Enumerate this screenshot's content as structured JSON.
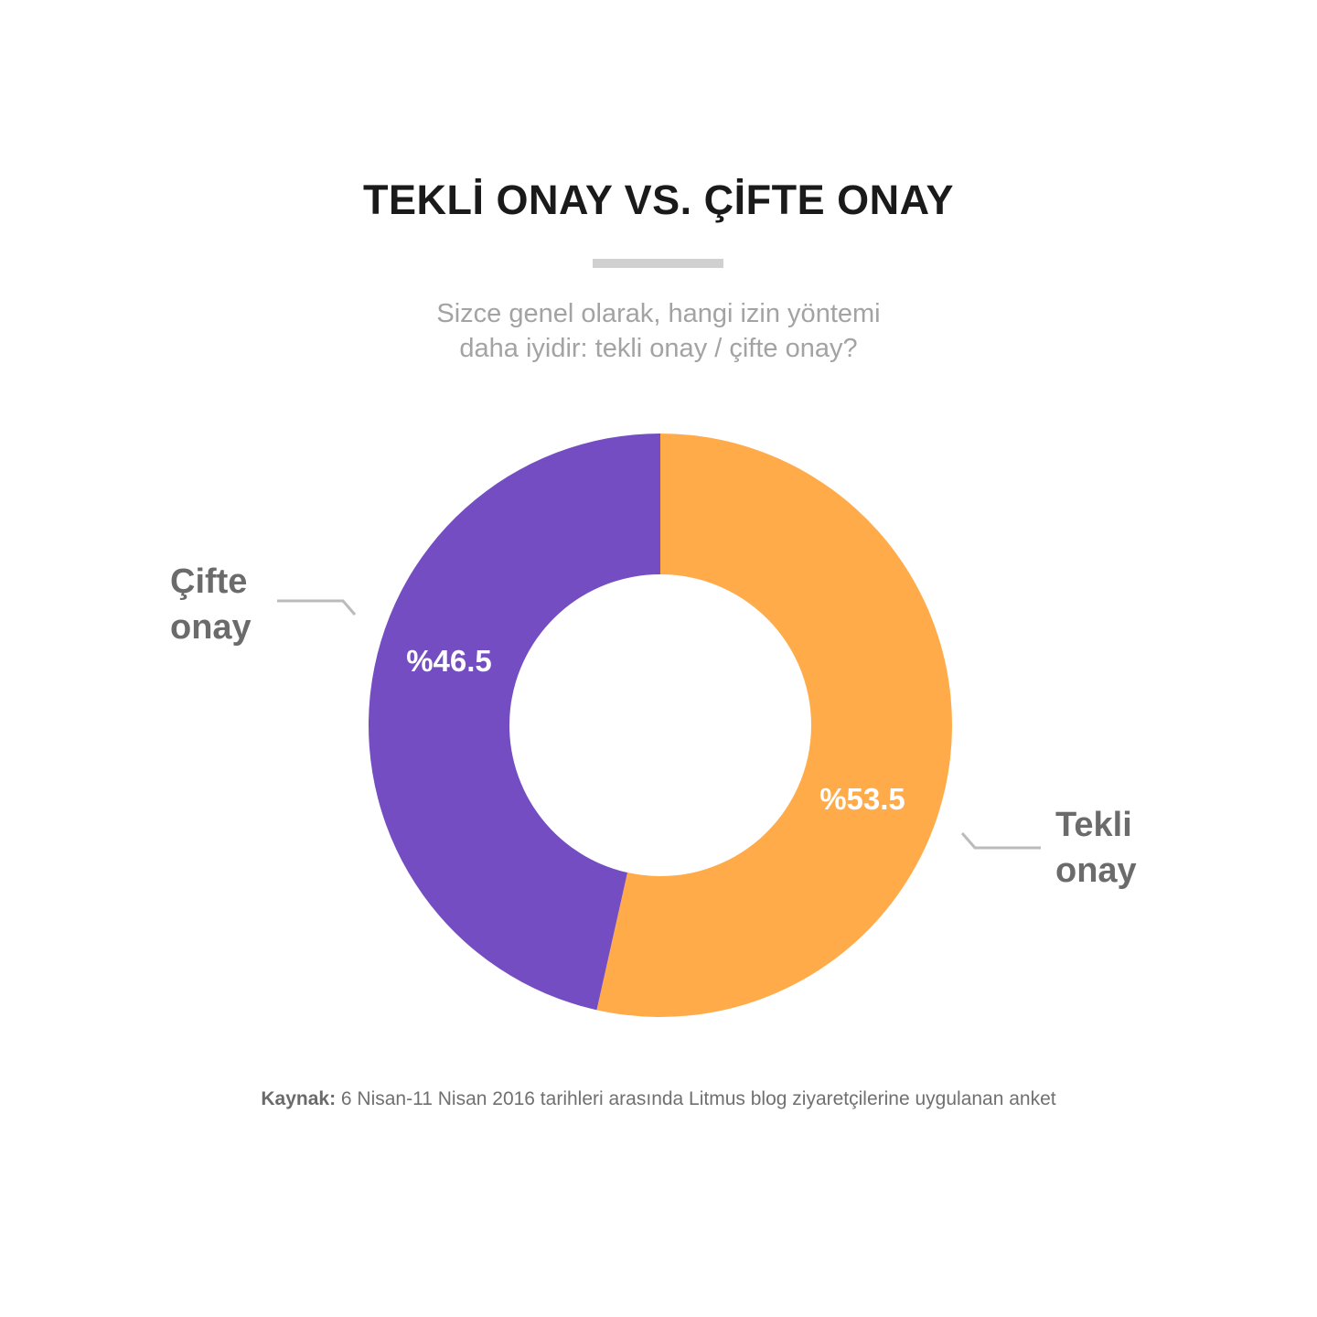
{
  "chart_data": {
    "type": "pie",
    "variant": "donut",
    "title": "TEKLİ ONAY VS. ÇİFTE ONAY",
    "subtitle": [
      "Sizce genel olarak, hangi izin yöntemi",
      "daha iyidir: tekli onay / çifte onay?"
    ],
    "slices": [
      {
        "name_lines": [
          "Tekli",
          "onay"
        ],
        "value": 53.5,
        "value_label": "%53.5",
        "color": "#FFAB4A"
      },
      {
        "name_lines": [
          "Çifte",
          "onay"
        ],
        "value": 46.5,
        "value_label": "%46.5",
        "color": "#744DC2"
      }
    ],
    "start": "top",
    "direction": "clockwise"
  },
  "source": {
    "label": "Kaynak:",
    "text": "6 Nisan-11 Nisan 2016 tarihleri arasında Litmus blog ziyaretçilerine uygulanan anket"
  },
  "colors": {
    "title": "#1a1a1a",
    "subtitle": "#a3a3a3",
    "category_label": "#6b6b6b",
    "leader_line": "#bbbbbb",
    "title_rule": "#d0d0d0"
  }
}
